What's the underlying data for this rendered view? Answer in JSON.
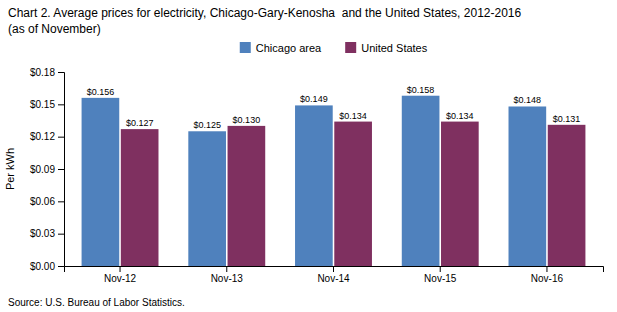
{
  "chart_data": {
    "type": "bar",
    "title": "Chart 2. Average prices for electricity, Chicago-Gary-Kenosha  and the United States, 2012-2016",
    "subtitle": "(as of November)",
    "y_label": "Per kWh",
    "annotations": [
      "Source: U.S. Bureau of Labor Statistics."
    ],
    "categories": [
      "Nov-12",
      "Nov-13",
      "Nov-14",
      "Nov-15",
      "Nov-16"
    ],
    "series": [
      {
        "name": "Chicago area",
        "color": "#4F81BD",
        "values": [
          0.156,
          0.125,
          0.149,
          0.158,
          0.148
        ],
        "value_labels": [
          "$0.156",
          "$0.125",
          "$0.149",
          "$0.158",
          "$0.148"
        ]
      },
      {
        "name": "United States",
        "color": "#7F3060",
        "values": [
          0.127,
          0.13,
          0.134,
          0.134,
          0.131
        ],
        "value_labels": [
          "$0.127",
          "$0.130",
          "$0.134",
          "$0.134",
          "$0.131"
        ]
      }
    ],
    "ylim": [
      0,
      0.18
    ],
    "yticks": [
      {
        "value": 0.0,
        "label": "$0.00"
      },
      {
        "value": 0.03,
        "label": "$0.03"
      },
      {
        "value": 0.06,
        "label": "$0.06"
      },
      {
        "value": 0.09,
        "label": "$0.09"
      },
      {
        "value": 0.12,
        "label": "$0.12"
      },
      {
        "value": 0.15,
        "label": "$0.15"
      },
      {
        "value": 0.18,
        "label": "$0.18"
      }
    ],
    "grid": false,
    "legend": "top",
    "data_labels": true
  }
}
